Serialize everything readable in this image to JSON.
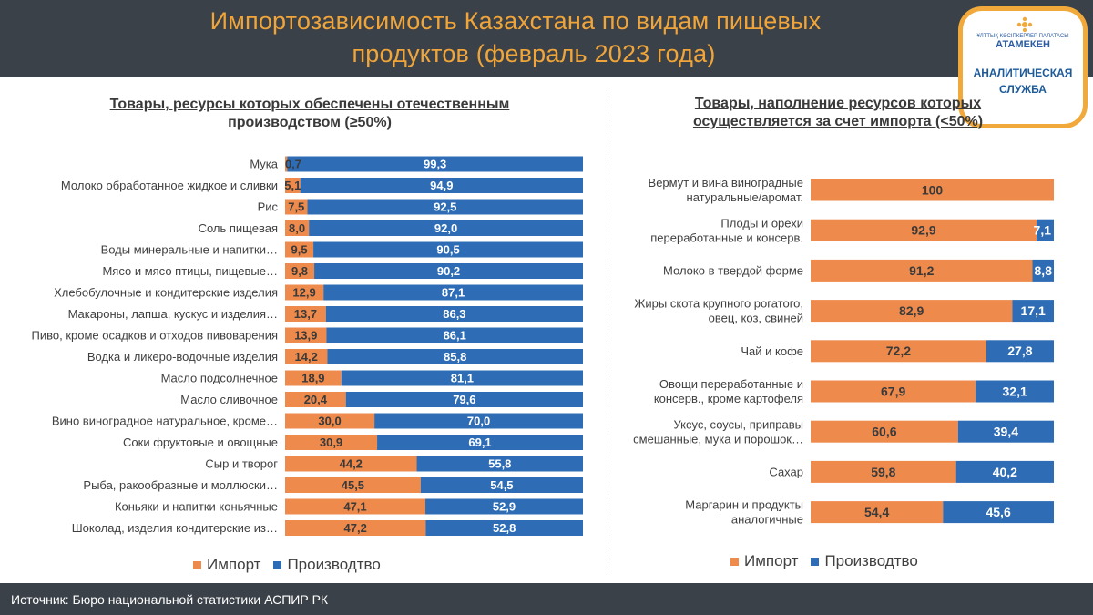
{
  "header": {
    "title_line1": "Импортозависимость Казахстана по видам пищевых",
    "title_line2": "продуктов (февраль 2023 года)"
  },
  "logo": {
    "small_text": "ҰЛТТЫҚ КӘСІПКЕРЛЕР ПАЛАТАСЫ",
    "brand": "АТАМЕКЕН",
    "line1": "АНАЛИТИЧЕСКАЯ",
    "line2": "СЛУЖБА"
  },
  "left_panel": {
    "title": "Товары, ресурсы которых обеспечены отечественным производством (≥50%)"
  },
  "right_panel": {
    "title": "Товары, наполнение ресурсов которых осуществляется за счет импорта (<50%)"
  },
  "legend": {
    "import_label": "Импорт",
    "production_label": "Производтво"
  },
  "colors": {
    "import": "#ee8a4c",
    "production": "#2e6db5",
    "title": "#f0a53a",
    "header_bg": "#3b4148"
  },
  "footer": {
    "source": "Источник: Бюро национальной статистики АСПИР РК"
  },
  "chart_data": [
    {
      "type": "bar",
      "orientation": "horizontal-stacked-100",
      "title": "Товары, ресурсы которых обеспечены отечественным производством (≥50%)",
      "categories": [
        "Мука",
        "Молоко обработанное жидкое и сливки",
        "Рис",
        "Соль пищевая",
        "Воды минеральные и напитки…",
        "Мясо и мясо птицы, пищевые…",
        "Хлебобулочные и кондитерские изделия",
        "Макароны, лапша, кускус и изделия…",
        "Пиво, кроме осадков и отходов пивоварения",
        "Водка и ликеро-водочные изделия",
        "Масло подсолнечное",
        "Масло сливочное",
        "Вино виноградное натуральное, кроме…",
        "Соки фруктовые и овощные",
        "Сыр и творог",
        "Рыба, ракообразные и моллюски…",
        "Коньяки и напитки коньячные",
        "Шоколад, изделия кондитерские из…"
      ],
      "series": [
        {
          "name": "Импорт",
          "values": [
            0.7,
            5.1,
            7.5,
            8.0,
            9.5,
            9.8,
            12.9,
            13.7,
            13.9,
            14.2,
            18.9,
            20.4,
            30.0,
            30.9,
            44.2,
            45.5,
            47.1,
            47.2
          ],
          "labels": [
            "0,7",
            "5,1",
            "7,5",
            "8,0",
            "9,5",
            "9,8",
            "12,9",
            "13,7",
            "13,9",
            "14,2",
            "18,9",
            "20,4",
            "30,0",
            "30,9",
            "44,2",
            "45,5",
            "47,1",
            "47,2"
          ]
        },
        {
          "name": "Производтво",
          "values": [
            99.3,
            94.9,
            92.5,
            92.0,
            90.5,
            90.2,
            87.1,
            86.3,
            86.1,
            85.8,
            81.1,
            79.6,
            70.0,
            69.1,
            55.8,
            54.5,
            52.9,
            52.8
          ],
          "labels": [
            "99,3",
            "94,9",
            "92,5",
            "92,0",
            "90,5",
            "90,2",
            "87,1",
            "86,3",
            "86,1",
            "85,8",
            "81,1",
            "79,6",
            "70,0",
            "69,1",
            "55,8",
            "54,5",
            "52,9",
            "52,8"
          ]
        }
      ],
      "xlim": [
        0,
        100
      ],
      "legend": "bottom"
    },
    {
      "type": "bar",
      "orientation": "horizontal-stacked-100",
      "title": "Товары, наполнение ресурсов которых осуществляется за счет импорта (<50%)",
      "categories": [
        [
          "Вермут и вина виноградные",
          "натуральные/аромат."
        ],
        [
          "Плоды и орехи",
          "переработанные и консерв."
        ],
        [
          "Молоко в твердой форме"
        ],
        [
          "Жиры скота крупного рогатого,",
          "овец, коз, свиней"
        ],
        [
          "Чай и кофе"
        ],
        [
          "Овощи переработанные и",
          "консерв., кроме картофеля"
        ],
        [
          "Уксус, соусы, приправы",
          "смешанные, мука и порошок…"
        ],
        [
          "Сахар"
        ],
        [
          "Маргарин и продукты",
          "аналогичные"
        ]
      ],
      "series": [
        {
          "name": "Импорт",
          "values": [
            100,
            92.9,
            91.2,
            82.9,
            72.2,
            67.9,
            60.6,
            59.8,
            54.4
          ],
          "labels": [
            "100",
            "92,9",
            "91,2",
            "82,9",
            "72,2",
            "67,9",
            "60,6",
            "59,8",
            "54,4"
          ]
        },
        {
          "name": "Производтво",
          "values": [
            0,
            7.1,
            8.8,
            17.1,
            27.8,
            32.1,
            39.4,
            40.2,
            45.6
          ],
          "labels": [
            "",
            "7,1",
            "8,8",
            "17,1",
            "27,8",
            "32,1",
            "39,4",
            "40,2",
            "45,6"
          ]
        }
      ],
      "xlim": [
        0,
        100
      ],
      "legend": "bottom"
    }
  ]
}
